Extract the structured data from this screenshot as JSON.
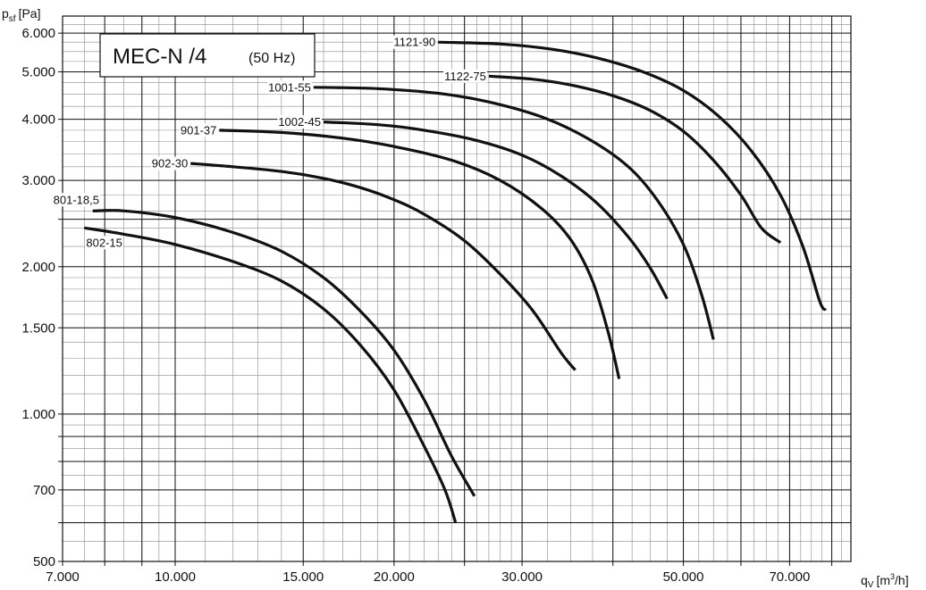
{
  "chart_data": {
    "type": "line",
    "title": "MEC-N /4",
    "subtitle": "(50 Hz)",
    "ylabel": "p",
    "ylabel_sub": "sf",
    "ylabel_unit": "[Pa]",
    "xlabel": "q",
    "xlabel_sub": "V",
    "xlabel_unit_pre": "[m",
    "xlabel_unit_sup": "3",
    "xlabel_unit_post": "/h]",
    "x_scale": "log",
    "y_scale": "log",
    "xlim": [
      7000,
      85000
    ],
    "ylim": [
      500,
      6500
    ],
    "grid": true,
    "x_ticks": [
      {
        "value": 7000,
        "label": "7.000"
      },
      {
        "value": 10000,
        "label": "10.000"
      },
      {
        "value": 15000,
        "label": "15.000"
      },
      {
        "value": 20000,
        "label": "20.000"
      },
      {
        "value": 30000,
        "label": "30.000"
      },
      {
        "value": 50000,
        "label": "50.000"
      },
      {
        "value": 70000,
        "label": "70.000"
      }
    ],
    "y_ticks": [
      {
        "value": 500,
        "label": "500"
      },
      {
        "value": 700,
        "label": "700"
      },
      {
        "value": 1000,
        "label": "1.000"
      },
      {
        "value": 1500,
        "label": "1.500"
      },
      {
        "value": 2000,
        "label": "2.000"
      },
      {
        "value": 3000,
        "label": "3.000"
      },
      {
        "value": 4000,
        "label": "4.000"
      },
      {
        "value": 5000,
        "label": "5.000"
      },
      {
        "value": 6000,
        "label": "6.000"
      }
    ],
    "series": [
      {
        "name": "801-18,5",
        "label_side": "above",
        "points": [
          [
            7700,
            2600
          ],
          [
            8500,
            2600
          ],
          [
            10000,
            2520
          ],
          [
            12000,
            2350
          ],
          [
            14000,
            2150
          ],
          [
            16000,
            1900
          ],
          [
            18000,
            1620
          ],
          [
            20000,
            1350
          ],
          [
            22000,
            1070
          ],
          [
            24000,
            820
          ],
          [
            25800,
            680
          ]
        ]
      },
      {
        "name": "802-15",
        "label_side": "below",
        "points": [
          [
            7500,
            2400
          ],
          [
            8500,
            2330
          ],
          [
            10000,
            2220
          ],
          [
            12000,
            2050
          ],
          [
            14000,
            1870
          ],
          [
            16000,
            1640
          ],
          [
            18000,
            1380
          ],
          [
            20000,
            1120
          ],
          [
            22000,
            860
          ],
          [
            23500,
            700
          ],
          [
            24300,
            600
          ]
        ]
      },
      {
        "name": "902-30",
        "label_side": "left",
        "points": [
          [
            10500,
            3250
          ],
          [
            12000,
            3200
          ],
          [
            14000,
            3130
          ],
          [
            16000,
            3030
          ],
          [
            18000,
            2900
          ],
          [
            20000,
            2740
          ],
          [
            22000,
            2560
          ],
          [
            25000,
            2260
          ],
          [
            28000,
            1930
          ],
          [
            31000,
            1630
          ],
          [
            34000,
            1330
          ],
          [
            35500,
            1230
          ]
        ]
      },
      {
        "name": "901-37",
        "label_side": "left",
        "points": [
          [
            11500,
            3800
          ],
          [
            14000,
            3760
          ],
          [
            17000,
            3660
          ],
          [
            20000,
            3520
          ],
          [
            24000,
            3300
          ],
          [
            28000,
            3000
          ],
          [
            32000,
            2620
          ],
          [
            35000,
            2270
          ],
          [
            37500,
            1870
          ],
          [
            39500,
            1450
          ],
          [
            40800,
            1180
          ]
        ]
      },
      {
        "name": "1002-45",
        "label_side": "left",
        "points": [
          [
            16000,
            3950
          ],
          [
            19000,
            3900
          ],
          [
            22000,
            3800
          ],
          [
            26000,
            3620
          ],
          [
            30000,
            3380
          ],
          [
            34000,
            3060
          ],
          [
            38000,
            2700
          ],
          [
            42000,
            2300
          ],
          [
            45000,
            1990
          ],
          [
            47500,
            1720
          ]
        ]
      },
      {
        "name": "1001-55",
        "label_side": "left",
        "points": [
          [
            15500,
            4650
          ],
          [
            19000,
            4620
          ],
          [
            23000,
            4520
          ],
          [
            27000,
            4340
          ],
          [
            32000,
            4040
          ],
          [
            37000,
            3650
          ],
          [
            42000,
            3200
          ],
          [
            46000,
            2740
          ],
          [
            50000,
            2220
          ],
          [
            53000,
            1750
          ],
          [
            55000,
            1420
          ]
        ]
      },
      {
        "name": "1122-75",
        "label_side": "left",
        "points": [
          [
            27000,
            4900
          ],
          [
            31000,
            4830
          ],
          [
            35000,
            4700
          ],
          [
            40000,
            4470
          ],
          [
            45000,
            4170
          ],
          [
            50000,
            3780
          ],
          [
            55000,
            3300
          ],
          [
            60000,
            2800
          ],
          [
            64000,
            2400
          ],
          [
            68000,
            2240
          ]
        ]
      },
      {
        "name": "1121-90",
        "label_side": "left",
        "points": [
          [
            23000,
            5750
          ],
          [
            28000,
            5700
          ],
          [
            33000,
            5560
          ],
          [
            38000,
            5340
          ],
          [
            44000,
            5000
          ],
          [
            50000,
            4580
          ],
          [
            56000,
            4050
          ],
          [
            62000,
            3450
          ],
          [
            68000,
            2800
          ],
          [
            73000,
            2200
          ],
          [
            77000,
            1700
          ],
          [
            78500,
            1630
          ]
        ]
      }
    ]
  }
}
